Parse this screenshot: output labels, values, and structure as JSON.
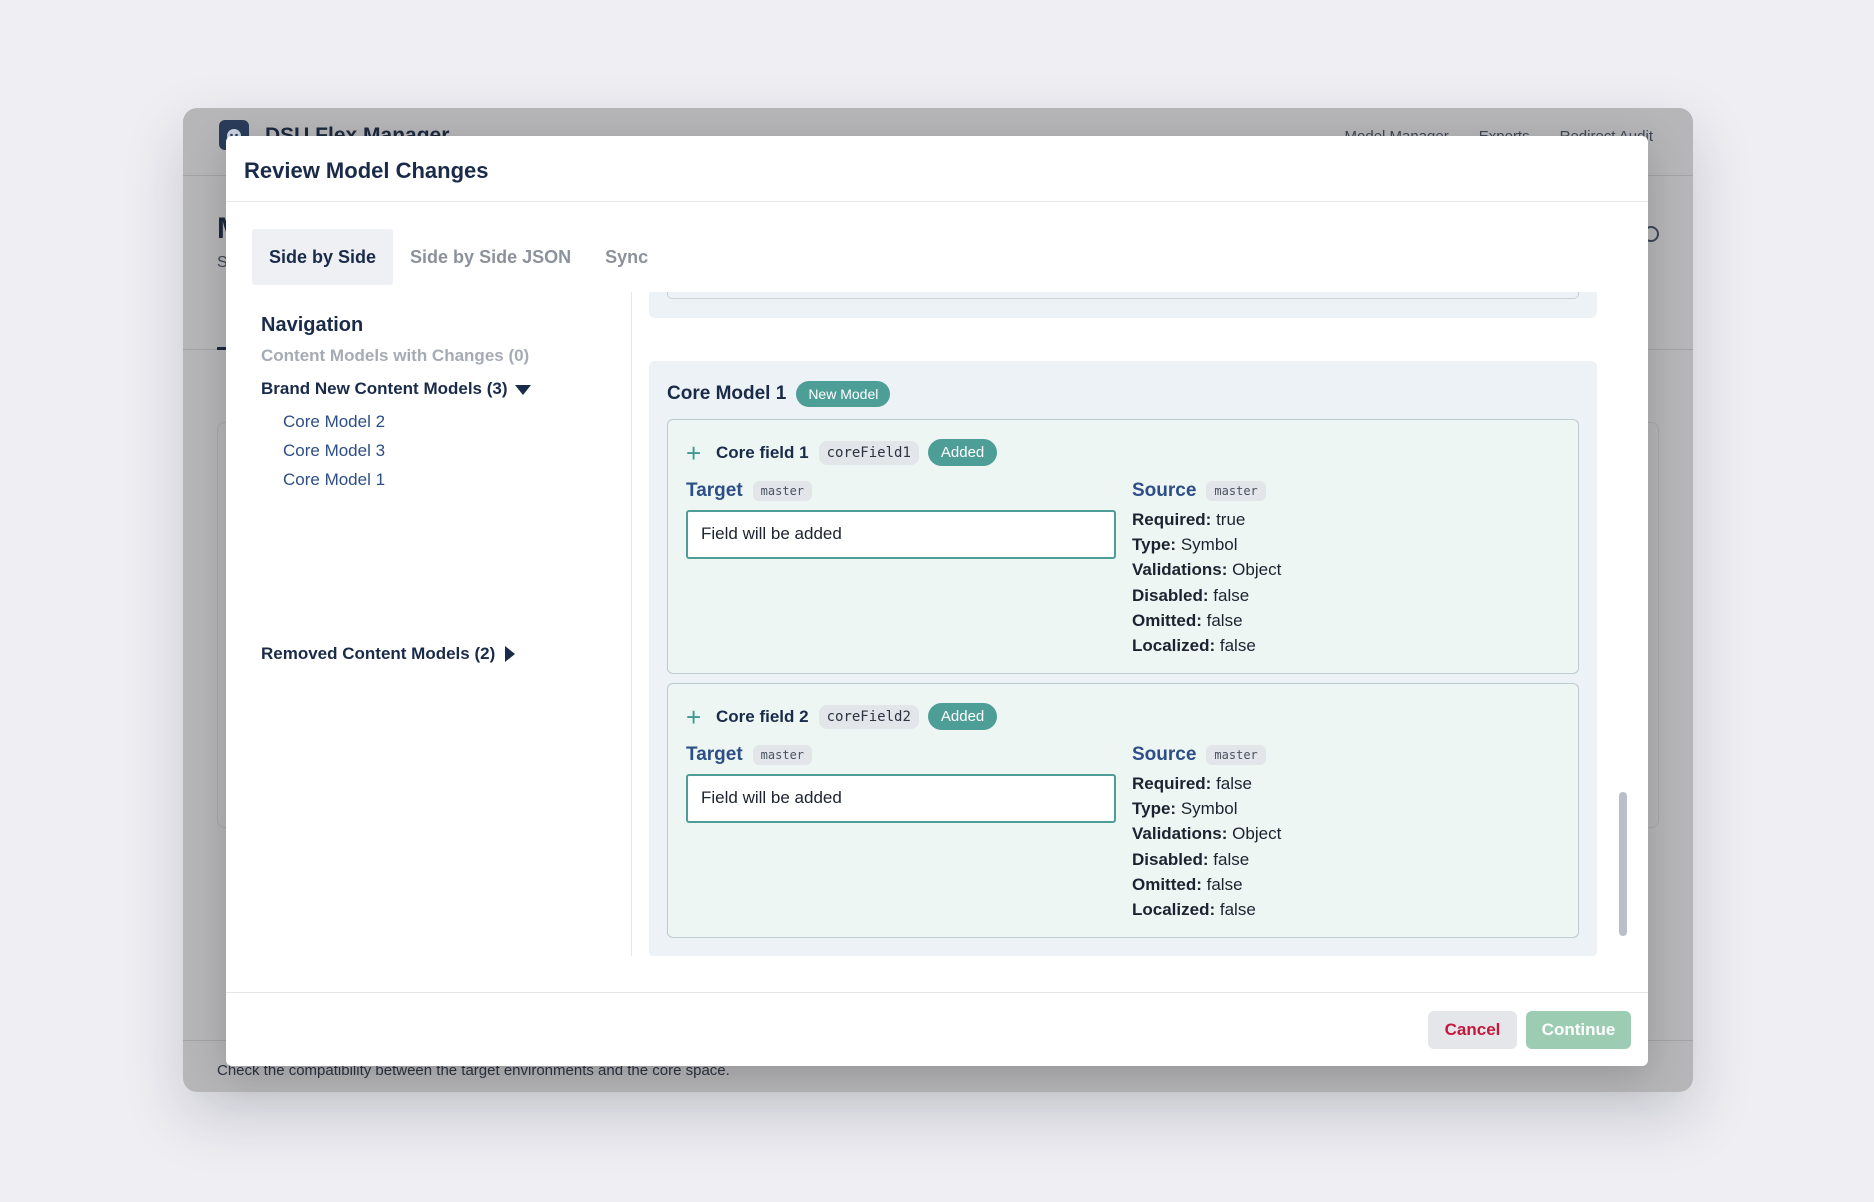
{
  "app": {
    "title": "DSU Flex Manager",
    "nav": [
      "Model Manager",
      "Exports",
      "Redirect Audit"
    ],
    "page_title": "M",
    "page_subtitle": "S",
    "footer_text": "Check the compatibility between the target environments and the core space."
  },
  "modal": {
    "title": "Review Model Changes",
    "tabs": [
      {
        "label": "Side by Side",
        "active": true
      },
      {
        "label": "Side by Side JSON",
        "active": false
      },
      {
        "label": "Sync",
        "active": false
      }
    ],
    "navigation": {
      "heading": "Navigation",
      "changes_label": "Content Models with Changes (0)",
      "brand_new_label": "Brand New Content Models (3)",
      "brand_new_items": [
        "Core Model 2",
        "Core Model 3",
        "Core Model 1"
      ],
      "removed_label": "Removed Content Models (2)"
    },
    "model": {
      "title": "Core Model 1",
      "badge": "New Model",
      "fields": [
        {
          "name": "Core field 1",
          "id": "coreField1",
          "status": "Added",
          "target_label": "Target",
          "target_env": "master",
          "target_text": "Field will be added",
          "source_label": "Source",
          "source_env": "master",
          "props": [
            {
              "key": "Required:",
              "value": "true"
            },
            {
              "key": "Type:",
              "value": "Symbol"
            },
            {
              "key": "Validations:",
              "value": "Object"
            },
            {
              "key": "Disabled:",
              "value": "false"
            },
            {
              "key": "Omitted:",
              "value": "false"
            },
            {
              "key": "Localized:",
              "value": "false"
            }
          ]
        },
        {
          "name": "Core field 2",
          "id": "coreField2",
          "status": "Added",
          "target_label": "Target",
          "target_env": "master",
          "target_text": "Field will be added",
          "source_label": "Source",
          "source_env": "master",
          "props": [
            {
              "key": "Required:",
              "value": "false"
            },
            {
              "key": "Type:",
              "value": "Symbol"
            },
            {
              "key": "Validations:",
              "value": "Object"
            },
            {
              "key": "Disabled:",
              "value": "false"
            },
            {
              "key": "Omitted:",
              "value": "false"
            },
            {
              "key": "Localized:",
              "value": "false"
            }
          ]
        }
      ]
    },
    "buttons": {
      "cancel": "Cancel",
      "continue": "Continue"
    }
  },
  "colors": {
    "accent": "#4e9e98",
    "primary_text": "#1a2b4a",
    "link": "#2d4e86",
    "danger": "#c6183c",
    "continue_bg": "#9ccdb3"
  },
  "icons": {
    "field_added": "plus-icon",
    "expanded": "caret-down-icon",
    "collapsed": "caret-right-icon"
  }
}
